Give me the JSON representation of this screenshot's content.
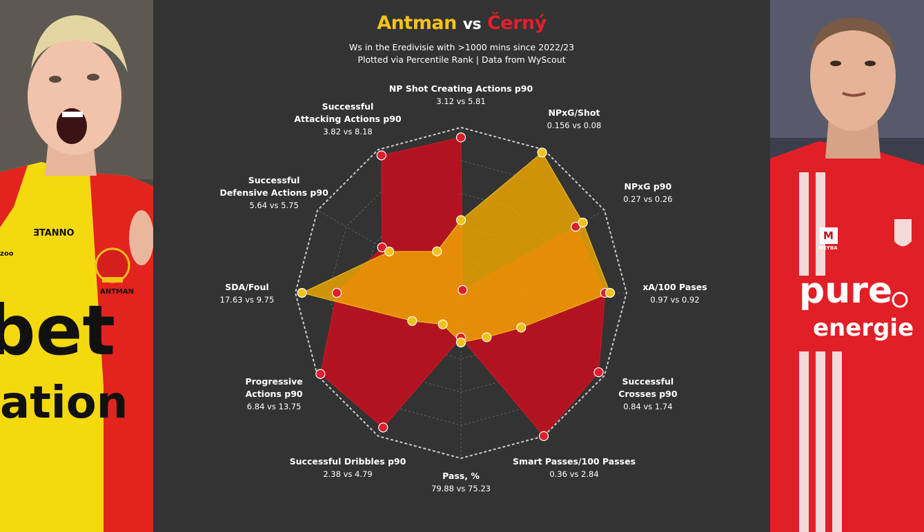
{
  "title": {
    "player1": "Antman",
    "vs": "vs",
    "player2": "Černý"
  },
  "subtitle_line1": "Ws in the Eredivisie with >1000 mins since 2022/23",
  "subtitle_line2": "Plotted via Percentile Rank | Data from WyScout",
  "colors": {
    "player1": "#f0a800",
    "player2": "#c0101f",
    "player1_point": "#f3c21a",
    "player2_point": "#dd1e2b",
    "grid": "#cccccc",
    "background": "#333333"
  },
  "photos": {
    "left": {
      "shirt_brand": "ƎTANNO",
      "name": "ANTMAN",
      "sponsor_line1": "bet",
      "sponsor_line2": "ation",
      "corner_text": "zoo"
    },
    "right": {
      "sponsor_line1": "pure",
      "sponsor_line2": "energie",
      "chest_badge": "M",
      "chest_text": "MEYBA"
    }
  },
  "chart_data": {
    "type": "radar",
    "scale": [
      0,
      100
    ],
    "axes": [
      {
        "label": "NP Shot Creating Actions p90",
        "values": "3.12 vs 5.81"
      },
      {
        "label": "NPxG/Shot",
        "values": "0.156 vs 0.08"
      },
      {
        "label": "NPxG p90",
        "values": "0.27 vs 0.26"
      },
      {
        "label": "xA/100 Pases",
        "values": "0.97 vs 0.92"
      },
      {
        "label": "Successful Crosses p90",
        "values": "0.84 vs 1.74"
      },
      {
        "label": "Smart Passes/100 Passes",
        "values": "0.36 vs 2.84"
      },
      {
        "label": "Pass, %",
        "values": "79.88 vs 75.23"
      },
      {
        "label": "Successful Dribbles p90",
        "values": "2.38 vs 4.79"
      },
      {
        "label": "Progressive Actions p90",
        "values": "6.84 vs 13.75"
      },
      {
        "label": "SDA/Foul",
        "values": "17.63 vs 9.75"
      },
      {
        "label": "Successful Defensive Actions p90",
        "values": "5.64 vs 5.75"
      },
      {
        "label": "Successful Attacking Actions p90",
        "values": "3.82 vs 8.18"
      }
    ],
    "series": [
      {
        "name": "Antman",
        "percentiles": [
          44,
          98,
          85,
          90,
          42,
          31,
          30,
          22,
          34,
          96,
          50,
          29
        ]
      },
      {
        "name": "Černý",
        "percentiles": [
          94,
          2,
          80,
          87,
          96,
          100,
          27,
          94,
          98,
          75,
          55,
          96
        ]
      }
    ]
  }
}
